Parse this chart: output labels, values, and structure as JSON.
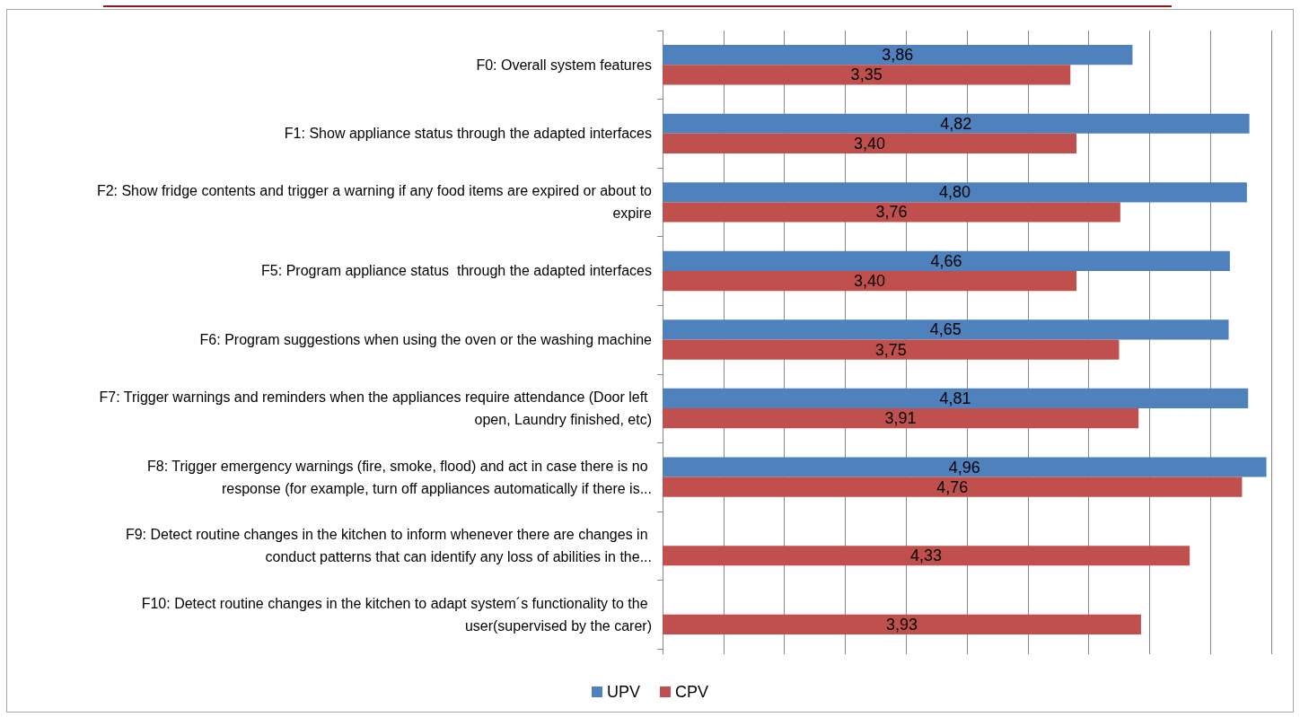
{
  "chart_data": {
    "type": "bar",
    "orientation": "horizontal",
    "categories": [
      "F0: Overall system features",
      "F1: Show appliance status through the adapted interfaces",
      "F2: Show fridge contents and trigger a warning if any food items are expired or about to expire",
      "F5: Program appliance status  through the adapted interfaces",
      "F6: Program suggestions when using the oven or the washing machine",
      "F7: Trigger warnings and reminders when the appliances require attendance (Door left open, Laundry finished, etc)",
      "F8: Trigger emergency warnings (fire, smoke, flood) and act in case there is no response (for example, turn off appliances automatically if there is...",
      "F9: Detect routine changes in the kitchen to inform whenever there are changes in conduct patterns that can identify any loss of abilities in the...",
      "F10: Detect routine changes in the kitchen to adapt system´s functionality to the user(supervised by the carer)"
    ],
    "series": [
      {
        "name": "UPV",
        "color": "#4f81bd",
        "values": [
          3.86,
          4.82,
          4.8,
          4.66,
          4.65,
          4.81,
          4.96,
          null,
          null
        ],
        "value_labels": [
          "3,86",
          "4,82",
          "4,80",
          "4,66",
          "4,65",
          "4,81",
          "4,96",
          null,
          null
        ]
      },
      {
        "name": "CPV",
        "color": "#c0504d",
        "values": [
          3.35,
          3.4,
          3.76,
          3.4,
          3.75,
          3.91,
          4.76,
          4.33,
          3.93
        ],
        "value_labels": [
          "3,35",
          "3,40",
          "3,76",
          "3,40",
          "3,75",
          "3,91",
          "4,76",
          "4,33",
          "3,93"
        ]
      }
    ],
    "xlim": [
      0,
      5
    ],
    "xticks": [
      {
        "value": 0,
        "label": null
      },
      {
        "value": 0.5,
        "label": null
      },
      {
        "value": 1,
        "label": null
      },
      {
        "value": 1.5,
        "label": null
      },
      {
        "value": 2,
        "label": null
      },
      {
        "value": 2.5,
        "label": null
      },
      {
        "value": 3,
        "label": null
      },
      {
        "value": 3.5,
        "label": null
      },
      {
        "value": 4,
        "label": null
      },
      {
        "value": 4.5,
        "label": null
      },
      {
        "value": 5,
        "label": null
      }
    ],
    "grid": "x",
    "legend": "bottom",
    "tick_labels": "y"
  }
}
